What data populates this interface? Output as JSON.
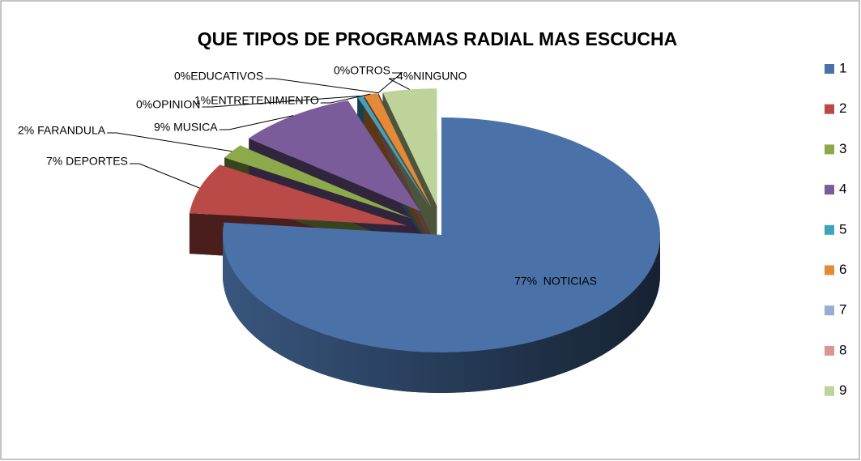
{
  "chart_data": {
    "type": "pie",
    "title": "QUE TIPOS DE PROGRAMAS RADIAL MAS ESCUCHA",
    "categories": [
      "1",
      "2",
      "3",
      "4",
      "5",
      "6",
      "7",
      "8",
      "9"
    ],
    "values": [
      77,
      7,
      2,
      9,
      0.4,
      1,
      0,
      0,
      4
    ],
    "value_labels": [
      "77%  NOTICIAS",
      "7% DEPORTES",
      "2% FARANDULA",
      "9% MUSICA",
      "0%OPINION",
      "1%ENTRETENIMIENTO",
      "0%EDUCATIVOS",
      "0%OTROS",
      "4%NINGUNO"
    ],
    "colors": [
      "#4a72a8",
      "#b94a48",
      "#8caa4a",
      "#7a5c9a",
      "#3fa3bd",
      "#e48a37",
      "#98acd4",
      "#d99593",
      "#bed39a"
    ],
    "legend": "right"
  }
}
